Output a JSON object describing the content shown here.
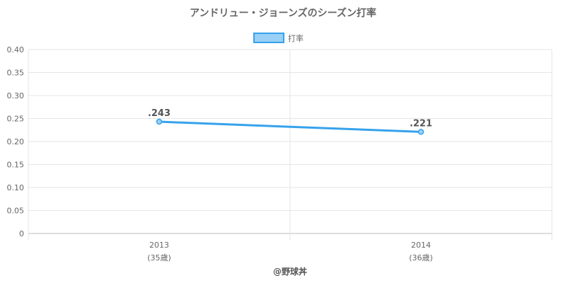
{
  "chart_data": {
    "type": "line",
    "title": "アンドリュー・ジョーンズのシーズン打率",
    "legend": {
      "position": "top",
      "entries": [
        "打率"
      ]
    },
    "x": [
      "2013",
      "2014"
    ],
    "x_sublabels": [
      "(35歳)",
      "(36歳)"
    ],
    "series": [
      {
        "name": "打率",
        "values": [
          0.243,
          0.221
        ],
        "labels": [
          ".243",
          ".221"
        ],
        "color": "#36a2eb"
      }
    ],
    "ylim": [
      0,
      0.4
    ],
    "yticks": [
      "0",
      "0.05",
      "0.10",
      "0.15",
      "0.20",
      "0.25",
      "0.30",
      "0.35",
      "0.40"
    ],
    "grid": true
  },
  "footer": "@野球丼",
  "colors": {
    "line": "#36a2eb",
    "legend_fill": "#9ad0f5",
    "grid": "#e6e6e6",
    "text": "#666666"
  }
}
